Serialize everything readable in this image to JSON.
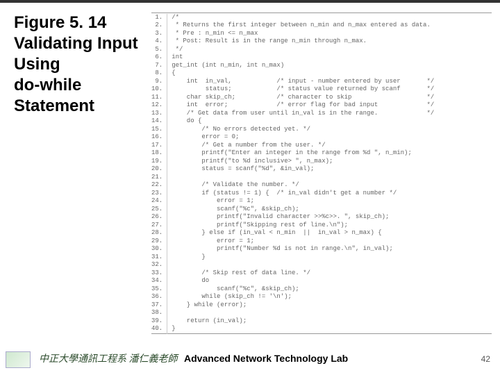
{
  "title": {
    "l1": "Figure 5. 14",
    "l2": "Validating Input",
    "l3": "Using",
    "l4": "do-while",
    "l5": "Statement"
  },
  "code_lines": [
    {
      "n": "1.",
      "t": "/*"
    },
    {
      "n": "2.",
      "t": " * Returns the first integer between n_min and n_max entered as data."
    },
    {
      "n": "3.",
      "t": " * Pre : n_min <= n_max"
    },
    {
      "n": "4.",
      "t": " * Post: Result is in the range n_min through n_max."
    },
    {
      "n": "5.",
      "t": " */"
    },
    {
      "n": "6.",
      "t": "int"
    },
    {
      "n": "7.",
      "t": "get_int (int n_min, int n_max)"
    },
    {
      "n": "8.",
      "t": "{"
    },
    {
      "n": "9.",
      "t": "    int  in_val,            /* input - number entered by user       */"
    },
    {
      "n": "10.",
      "t": "         status;            /* status value returned by scanf       */"
    },
    {
      "n": "11.",
      "t": "    char skip_ch;           /* character to skip                    */"
    },
    {
      "n": "12.",
      "t": "    int  error;             /* error flag for bad input             */"
    },
    {
      "n": "13.",
      "t": "    /* Get data from user until in_val is in the range.             */"
    },
    {
      "n": "14.",
      "t": "    do {"
    },
    {
      "n": "15.",
      "t": "        /* No errors detected yet. */"
    },
    {
      "n": "16.",
      "t": "        error = 0;"
    },
    {
      "n": "17.",
      "t": "        /* Get a number from the user. */"
    },
    {
      "n": "18.",
      "t": "        printf(\"Enter an integer in the range from %d \", n_min);"
    },
    {
      "n": "19.",
      "t": "        printf(\"to %d inclusive> \", n_max);"
    },
    {
      "n": "20.",
      "t": "        status = scanf(\"%d\", &in_val);"
    },
    {
      "n": "21.",
      "t": ""
    },
    {
      "n": "22.",
      "t": "        /* Validate the number. */"
    },
    {
      "n": "23.",
      "t": "        if (status != 1) {  /* in_val didn't get a number */"
    },
    {
      "n": "24.",
      "t": "            error = 1;"
    },
    {
      "n": "25.",
      "t": "            scanf(\"%c\", &skip_ch);"
    },
    {
      "n": "26.",
      "t": "            printf(\"Invalid character >>%c>>. \", skip_ch);"
    },
    {
      "n": "27.",
      "t": "            printf(\"Skipping rest of line.\\n\");"
    },
    {
      "n": "28.",
      "t": "        } else if (in_val < n_min  ||  in_val > n_max) {"
    },
    {
      "n": "29.",
      "t": "            error = 1;"
    },
    {
      "n": "30.",
      "t": "            printf(\"Number %d is not in range.\\n\", in_val);"
    },
    {
      "n": "31.",
      "t": "        }"
    },
    {
      "n": "32.",
      "t": ""
    },
    {
      "n": "33.",
      "t": "        /* Skip rest of data line. */"
    },
    {
      "n": "34.",
      "t": "        do"
    },
    {
      "n": "35.",
      "t": "            scanf(\"%c\", &skip_ch);"
    },
    {
      "n": "36.",
      "t": "        while (skip_ch != '\\n');"
    },
    {
      "n": "37.",
      "t": "    } while (error);"
    },
    {
      "n": "38.",
      "t": ""
    },
    {
      "n": "39.",
      "t": "    return (in_val);"
    },
    {
      "n": "40.",
      "t": "}"
    }
  ],
  "footer": {
    "left": "中正大學通訊工程系 潘仁義老師",
    "right": "Advanced Network Technology Lab",
    "page": "42"
  },
  "colors": {
    "title": "#000000",
    "code": "#666666",
    "linenum": "#888888",
    "footer_zh": "#2a4a2a",
    "border": "#999999"
  }
}
